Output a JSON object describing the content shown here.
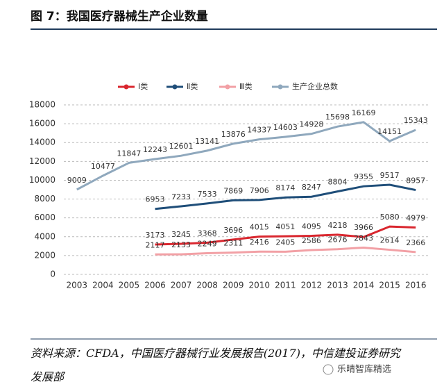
{
  "chart_data": {
    "type": "line",
    "title": "图 7：我国医疗器械生产企业数量",
    "categories": [
      "2003",
      "2004",
      "2005",
      "2006",
      "2007",
      "2008",
      "2009",
      "2010",
      "2011",
      "2012",
      "2013",
      "2014",
      "2015",
      "2016"
    ],
    "series": [
      {
        "name": "Ⅰ类",
        "color": "#d9262e",
        "values": [
          null,
          null,
          null,
          3173,
          3245,
          3368,
          3696,
          4015,
          4051,
          4095,
          4218,
          3966,
          5080,
          4979
        ]
      },
      {
        "name": "Ⅱ类",
        "color": "#1f4e79",
        "values": [
          null,
          null,
          null,
          6953,
          7233,
          7533,
          7869,
          7906,
          8174,
          8247,
          8804,
          9355,
          9517,
          8957
        ]
      },
      {
        "name": "Ⅲ类",
        "color": "#f2a0a5",
        "values": [
          null,
          null,
          null,
          2117,
          2133,
          2249,
          2311,
          2416,
          2405,
          2586,
          2676,
          2843,
          2614,
          2366
        ]
      },
      {
        "name": "生产企业总数",
        "color": "#8fa8bd",
        "values": [
          9009,
          10477,
          11847,
          12243,
          12601,
          13141,
          13876,
          14337,
          14603,
          14928,
          15698,
          16169,
          14151,
          15343
        ]
      }
    ],
    "ylim": [
      0,
      18000
    ],
    "yticks": [
      0,
      2000,
      4000,
      6000,
      8000,
      10000,
      12000,
      14000,
      16000,
      18000
    ],
    "grid": true,
    "legend": "top",
    "source": "资料来源：CFDA，中国医疗器械行业发展报告(2017)，中信建投证券研究发展部",
    "watermark": "乐晴智库精选"
  }
}
